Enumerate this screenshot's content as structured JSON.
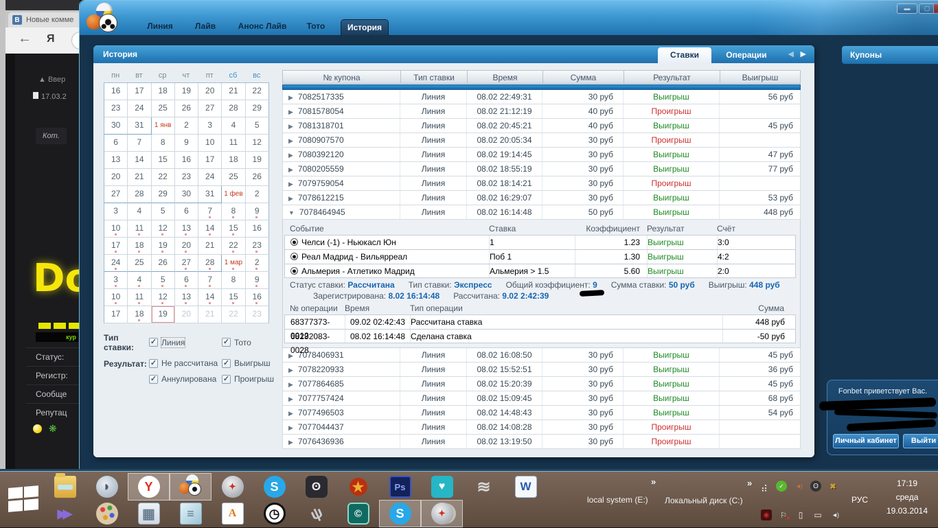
{
  "browser": {
    "vk_badge": "В",
    "tab_title": "Новые комме",
    "back_arrow": "←",
    "yandex_letter": "Я",
    "page": {
      "up_link": "▲ Ввер",
      "doc_item": "17.03.2",
      "bubble_label": "Кот.",
      "big_letters": "Do",
      "banner_word": "кур",
      "fields": [
        "Статус:",
        "Регистр:",
        "Сообще",
        "Репутац"
      ]
    }
  },
  "app": {
    "nav": [
      {
        "id": "line",
        "label": "Линия",
        "active": false
      },
      {
        "id": "live",
        "label": "Лайв",
        "active": false
      },
      {
        "id": "live-announce",
        "label": "Анонс Лайв",
        "active": false
      },
      {
        "id": "toto",
        "label": "Тото",
        "active": false
      },
      {
        "id": "history",
        "label": "История",
        "active": true
      }
    ],
    "window_buttons": {
      "minimize": "▬",
      "maximize": "▢",
      "close": ""
    },
    "panel_title": "История",
    "tab_stakes": "Ставки",
    "tab_operations": "Операции",
    "arrow_left": "◀",
    "arrow_right": "▶",
    "coupons_title": "Купоны",
    "greeting": {
      "text": "Fonbet приветствует Вас.",
      "account_button": "Личный кабинет",
      "logout_button": "Выйти"
    }
  },
  "calendar": {
    "weekdays": [
      "пн",
      "вт",
      "ср",
      "чт",
      "пт",
      "сб",
      "вс"
    ],
    "rows": [
      [
        {
          "d": "16"
        },
        {
          "d": "17"
        },
        {
          "d": "18"
        },
        {
          "d": "19"
        },
        {
          "d": "20"
        },
        {
          "d": "21"
        },
        {
          "d": "22"
        }
      ],
      [
        {
          "d": "23"
        },
        {
          "d": "24"
        },
        {
          "d": "25"
        },
        {
          "d": "26"
        },
        {
          "d": "27"
        },
        {
          "d": "28"
        },
        {
          "d": "29"
        }
      ],
      [
        {
          "d": "30",
          "bb": true
        },
        {
          "d": "31",
          "bb": true,
          "br": true
        },
        {
          "d": "1 янв",
          "red": true
        },
        {
          "d": "2"
        },
        {
          "d": "3"
        },
        {
          "d": "4"
        },
        {
          "d": "5"
        }
      ],
      [
        {
          "d": "6"
        },
        {
          "d": "7"
        },
        {
          "d": "8"
        },
        {
          "d": "9"
        },
        {
          "d": "10"
        },
        {
          "d": "11"
        },
        {
          "d": "12"
        }
      ],
      [
        {
          "d": "13"
        },
        {
          "d": "14"
        },
        {
          "d": "15"
        },
        {
          "d": "16"
        },
        {
          "d": "17"
        },
        {
          "d": "18"
        },
        {
          "d": "19"
        }
      ],
      [
        {
          "d": "20"
        },
        {
          "d": "21"
        },
        {
          "d": "22"
        },
        {
          "d": "23"
        },
        {
          "d": "24"
        },
        {
          "d": "25"
        },
        {
          "d": "26"
        }
      ],
      [
        {
          "d": "27",
          "bb": true
        },
        {
          "d": "28",
          "bb": true
        },
        {
          "d": "29",
          "bb": true
        },
        {
          "d": "30",
          "bb": true
        },
        {
          "d": "31",
          "bb": true,
          "br": true
        },
        {
          "d": "1 фев",
          "red": true
        },
        {
          "d": "2"
        }
      ],
      [
        {
          "d": "3"
        },
        {
          "d": "4"
        },
        {
          "d": "5"
        },
        {
          "d": "6"
        },
        {
          "d": "7",
          "dot": true
        },
        {
          "d": "8",
          "dot": true
        },
        {
          "d": "9",
          "dot": true
        }
      ],
      [
        {
          "d": "10",
          "dot": true
        },
        {
          "d": "11",
          "dot": true
        },
        {
          "d": "12",
          "dot": true
        },
        {
          "d": "13",
          "dot": true
        },
        {
          "d": "14",
          "dot": true
        },
        {
          "d": "15",
          "dot": true
        },
        {
          "d": "16"
        }
      ],
      [
        {
          "d": "17",
          "dot": true
        },
        {
          "d": "18",
          "dot": true
        },
        {
          "d": "19",
          "dot": true
        },
        {
          "d": "20",
          "dot": true
        },
        {
          "d": "21"
        },
        {
          "d": "22",
          "dot": true
        },
        {
          "d": "23",
          "dot": true
        }
      ],
      [
        {
          "d": "24",
          "dot": true,
          "bb": true
        },
        {
          "d": "25",
          "bb": true
        },
        {
          "d": "26",
          "bb": true
        },
        {
          "d": "27",
          "dot": true,
          "bb": true
        },
        {
          "d": "28",
          "dot": true,
          "bb": true,
          "br": true
        },
        {
          "d": "1 мар",
          "red": true,
          "dot": true
        },
        {
          "d": "2",
          "dot": true
        }
      ],
      [
        {
          "d": "3",
          "dot": true
        },
        {
          "d": "4",
          "dot": true
        },
        {
          "d": "5",
          "dot": true
        },
        {
          "d": "6",
          "dot": true
        },
        {
          "d": "7",
          "dot": true
        },
        {
          "d": "8"
        },
        {
          "d": "9",
          "dot": true
        }
      ],
      [
        {
          "d": "10",
          "dot": true
        },
        {
          "d": "11",
          "dot": true
        },
        {
          "d": "12",
          "dot": true
        },
        {
          "d": "13",
          "dot": true
        },
        {
          "d": "14",
          "dot": true
        },
        {
          "d": "15",
          "dot": true
        },
        {
          "d": "16",
          "dot": true
        }
      ],
      [
        {
          "d": "17"
        },
        {
          "d": "18",
          "dot": true
        },
        {
          "d": "19",
          "sel": true
        },
        {
          "d": "20",
          "muted": true
        },
        {
          "d": "21",
          "muted": true
        },
        {
          "d": "22",
          "muted": true
        },
        {
          "d": "23",
          "muted": true
        }
      ]
    ]
  },
  "filters": {
    "type_label": "Тип ставки:",
    "result_label": "Результат:",
    "type_options": [
      {
        "id": "line",
        "label": "Линия",
        "checked": true,
        "focus": true
      },
      {
        "id": "toto",
        "label": "Тото",
        "checked": true
      }
    ],
    "result_options": [
      {
        "id": "pending",
        "label": "Не рассчитана",
        "checked": true
      },
      {
        "id": "win",
        "label": "Выигрыш",
        "checked": true
      },
      {
        "id": "void",
        "label": "Аннулирована",
        "checked": true
      },
      {
        "id": "lose",
        "label": "Проигрыш",
        "checked": true
      }
    ]
  },
  "bets": {
    "columns": [
      "№ купона",
      "Тип ставки",
      "Время",
      "Сумма",
      "Результат",
      "Выигрыш"
    ],
    "rows": [
      {
        "coupon": "7082517335",
        "type": "Линия",
        "time": "08.02 22:49:31",
        "sum": "30 руб",
        "result": "Выигрыш",
        "win": "56 руб"
      },
      {
        "coupon": "7081578054",
        "type": "Линия",
        "time": "08.02 21:12:19",
        "sum": "40 руб",
        "result": "Проигрыш",
        "win": ""
      },
      {
        "coupon": "7081318701",
        "type": "Линия",
        "time": "08.02 20:45:21",
        "sum": "40 руб",
        "result": "Выигрыш",
        "win": "45 руб"
      },
      {
        "coupon": "7080907570",
        "type": "Линия",
        "time": "08.02 20:05:34",
        "sum": "30 руб",
        "result": "Проигрыш",
        "win": ""
      },
      {
        "coupon": "7080392120",
        "type": "Линия",
        "time": "08.02 19:14:45",
        "sum": "30 руб",
        "result": "Выигрыш",
        "win": "47 руб"
      },
      {
        "coupon": "7080205559",
        "type": "Линия",
        "time": "08.02 18:55:19",
        "sum": "30 руб",
        "result": "Выигрыш",
        "win": "77 руб"
      },
      {
        "coupon": "7079759054",
        "type": "Линия",
        "time": "08.02 18:14:21",
        "sum": "30 руб",
        "result": "Проигрыш",
        "win": ""
      },
      {
        "coupon": "7078612215",
        "type": "Линия",
        "time": "08.02 16:29:07",
        "sum": "30 руб",
        "result": "Выигрыш",
        "win": "53 руб"
      },
      {
        "coupon": "7078464945",
        "type": "Линия",
        "time": "08.02 16:14:48",
        "sum": "50 руб",
        "result": "Выигрыш",
        "win": "448 руб",
        "expanded": true
      },
      {
        "coupon": "7078406931",
        "type": "Линия",
        "time": "08.02 16:08:50",
        "sum": "30 руб",
        "result": "Выигрыш",
        "win": "45 руб"
      },
      {
        "coupon": "7078220933",
        "type": "Линия",
        "time": "08.02 15:52:51",
        "sum": "30 руб",
        "result": "Выигрыш",
        "win": "36 руб"
      },
      {
        "coupon": "7077864685",
        "type": "Линия",
        "time": "08.02 15:20:39",
        "sum": "30 руб",
        "result": "Выигрыш",
        "win": "45 руб"
      },
      {
        "coupon": "7077757424",
        "type": "Линия",
        "time": "08.02 15:09:45",
        "sum": "30 руб",
        "result": "Выигрыш",
        "win": "68 руб"
      },
      {
        "coupon": "7077496503",
        "type": "Линия",
        "time": "08.02 14:48:43",
        "sum": "30 руб",
        "result": "Выигрыш",
        "win": "54 руб"
      },
      {
        "coupon": "7077044437",
        "type": "Линия",
        "time": "08.02 14:08:28",
        "sum": "30 руб",
        "result": "Проигрыш",
        "win": ""
      },
      {
        "coupon": "7076436936",
        "type": "Линия",
        "time": "08.02 13:19:50",
        "sum": "30 руб",
        "result": "Проигрыш",
        "win": ""
      }
    ],
    "detail": {
      "columns": [
        "Событие",
        "Ставка",
        "Коэффициент",
        "Результат",
        "Счёт"
      ],
      "events": [
        {
          "event": "Челси (-1) - Ньюкасл Юн",
          "bet": "1",
          "coef": "1.23",
          "result": "Выигрыш",
          "score": "3:0"
        },
        {
          "event": "Реал Мадрид - Вильярреал",
          "bet": "Поб 1",
          "coef": "1.30",
          "result": "Выигрыш",
          "score": "4:2"
        },
        {
          "event": "Альмерия - Атлетико Мадрид",
          "bet": "Альмерия > 1.5",
          "coef": "5.60",
          "result": "Выигрыш",
          "score": "2:0"
        }
      ],
      "status_line1": [
        {
          "label": "Статус ставки:",
          "value": "Рассчитана"
        },
        {
          "label": "Тип ставки:",
          "value": "Экспресс"
        },
        {
          "label": "Общий коэффициент:",
          "value": "9"
        },
        {
          "label": "Сумма ставки:",
          "value": "50 руб"
        },
        {
          "label": "Выигрыш:",
          "value": "448 руб"
        }
      ],
      "status_line2": [
        {
          "label": "Зарегистрирована:",
          "value": "8.02 16:14:48"
        },
        {
          "label": "Рассчитана:",
          "value": "9.02 2:42:39"
        }
      ],
      "ops_columns": [
        "№ операции",
        "Время",
        "Тип операции",
        "Сумма"
      ],
      "ops": [
        {
          "id": "68377373-0012",
          "time": "09.02 02:42:43",
          "type": "Рассчитана ставка",
          "sum": "448 руб"
        },
        {
          "id": "68292083-0028",
          "time": "08.02 16:14:48",
          "type": "Сделана ставка",
          "sum": "-50 руб"
        }
      ]
    }
  },
  "taskbar": {
    "overflow": "»",
    "drive_e": "local system (E:)",
    "drive_c": "Локальный диск (C:)",
    "lang": "РУС",
    "time": "17:19",
    "weekday": "среда",
    "date": "19.03.2014",
    "row1": [
      {
        "name": "explorer-icon",
        "kind": "folder",
        "glyph": ""
      },
      {
        "name": "teamspeak-icon",
        "kind": "ts",
        "glyph": "◗"
      },
      {
        "name": "yandex-browser-icon",
        "kind": "yandex",
        "glyph": "Y",
        "active": true
      },
      {
        "name": "fonbet-icon",
        "kind": "fonbet",
        "glyph": "",
        "active": true
      },
      {
        "name": "safari-icon",
        "kind": "safari",
        "glyph": "✦"
      },
      {
        "name": "skype-icon",
        "kind": "skype",
        "glyph": "S"
      },
      {
        "name": "steam-icon",
        "kind": "steam",
        "glyph": "ʘ"
      },
      {
        "name": "medal-badge-icon",
        "kind": "medal",
        "glyph": "★"
      },
      {
        "name": "photoshop-icon",
        "kind": "ps",
        "glyph": "Ps"
      },
      {
        "name": "shield-heart-icon",
        "kind": "heart",
        "glyph": "♥"
      },
      {
        "name": "wifi-share-icon",
        "kind": "wifi",
        "glyph": "≋"
      },
      {
        "name": "word-icon",
        "kind": "word",
        "glyph": "W"
      }
    ],
    "row2": [
      {
        "name": "kmplayer-icon",
        "kind": "km",
        "glyph": "▶▶"
      },
      {
        "name": "paint-icon",
        "kind": "paint",
        "glyph": ""
      },
      {
        "name": "calculator-icon",
        "kind": "calc",
        "glyph": "▦"
      },
      {
        "name": "notepad-icon",
        "kind": "notepad",
        "glyph": "≡"
      },
      {
        "name": "wordpad-icon",
        "kind": "wordpad",
        "glyph": "A"
      },
      {
        "name": "clock-icon",
        "kind": "clock",
        "glyph": "◷"
      },
      {
        "name": "microphone-icon",
        "kind": "mic",
        "glyph": "ψ"
      },
      {
        "name": "camtasia-icon",
        "kind": "camtasia",
        "glyph": "©"
      },
      {
        "name": "skype-window-icon",
        "kind": "skype",
        "glyph": "S",
        "active": true
      },
      {
        "name": "safari-window-icon",
        "kind": "safari",
        "glyph": "✦",
        "active": true,
        "stacked": true
      }
    ],
    "tray1": [
      {
        "name": "network-signal-icon",
        "kind": "t-signal",
        "glyph": "⣴"
      },
      {
        "name": "status-check-icon",
        "kind": "t-check",
        "glyph": "✓"
      },
      {
        "name": "sound-alert-icon",
        "kind": "t-sound",
        "glyph": "◄)"
      },
      {
        "name": "steam-tray-icon",
        "kind": "t-steam",
        "glyph": "ʘ"
      },
      {
        "name": "utility-x-icon",
        "kind": "t-x",
        "glyph": "✖"
      }
    ],
    "tray2": [
      {
        "name": "recorder-icon",
        "kind": "t-rec",
        "glyph": "◉"
      },
      {
        "name": "action-center-icon",
        "kind": "t-flag",
        "glyph": "⚐"
      },
      {
        "name": "power-icon",
        "kind": "t-batt",
        "glyph": "▯"
      },
      {
        "name": "network-icon",
        "kind": "t-net",
        "glyph": "▭"
      },
      {
        "name": "volume-icon",
        "kind": "t-vol",
        "glyph": "◄)"
      }
    ]
  }
}
